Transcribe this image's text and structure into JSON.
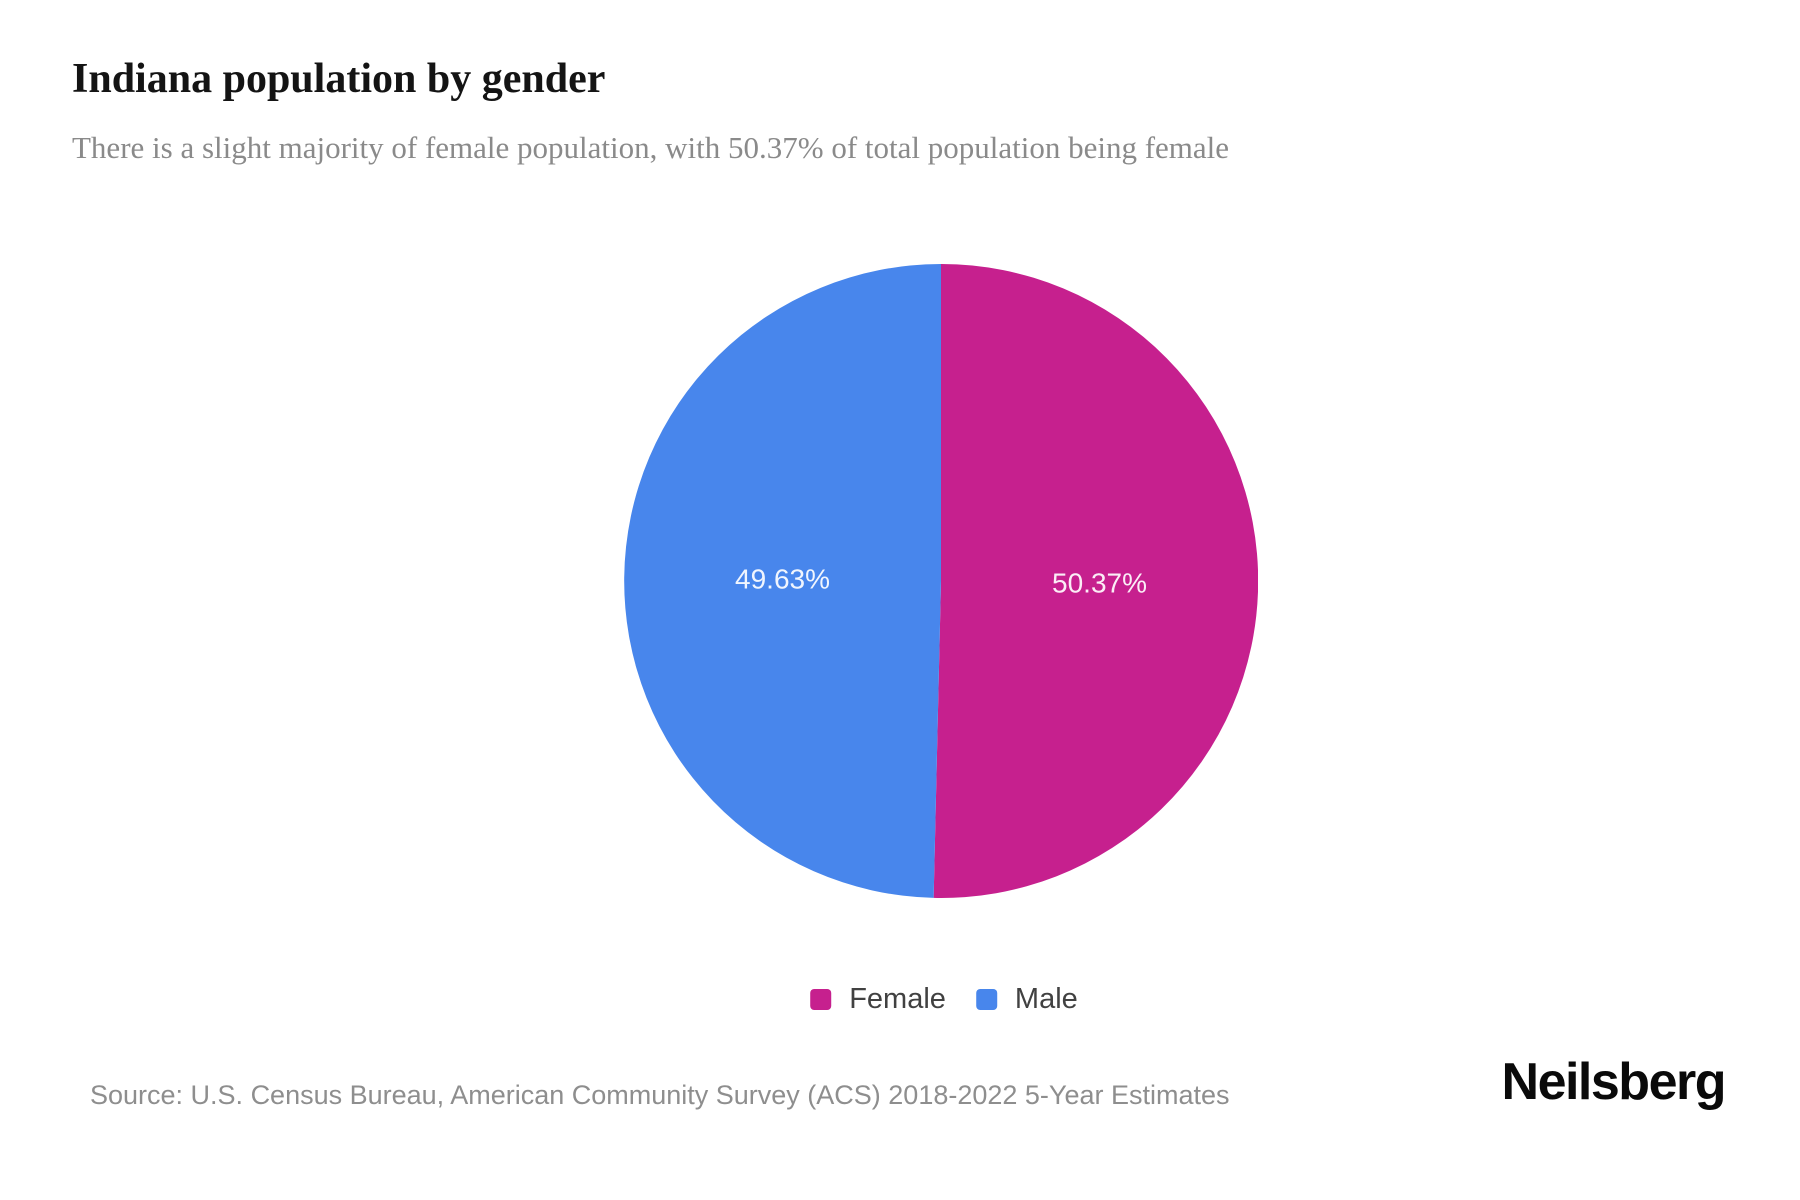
{
  "header": {
    "title": "Indiana population by gender",
    "subtitle": "There is a slight majority of female population, with 50.37% of total population being female"
  },
  "chart_data": {
    "type": "pie",
    "title": "Indiana population by gender",
    "series": [
      {
        "name": "Female",
        "value": 50.37,
        "label": "50.37%",
        "color": "#C6208E"
      },
      {
        "name": "Male",
        "value": 49.63,
        "label": "49.63%",
        "color": "#4886EC"
      }
    ],
    "start_angle_deg": 0,
    "direction": "clockwise",
    "label_position": "inside",
    "label_radius_fraction": 0.5,
    "legend_position": "bottom"
  },
  "legend": {
    "items": [
      {
        "label": "Female",
        "color": "#C6208E"
      },
      {
        "label": "Male",
        "color": "#4886EC"
      }
    ]
  },
  "footer": {
    "source": "Source: U.S. Census Bureau, American Community Survey (ACS) 2018-2022 5-Year Estimates",
    "brand": "Neilsberg"
  }
}
